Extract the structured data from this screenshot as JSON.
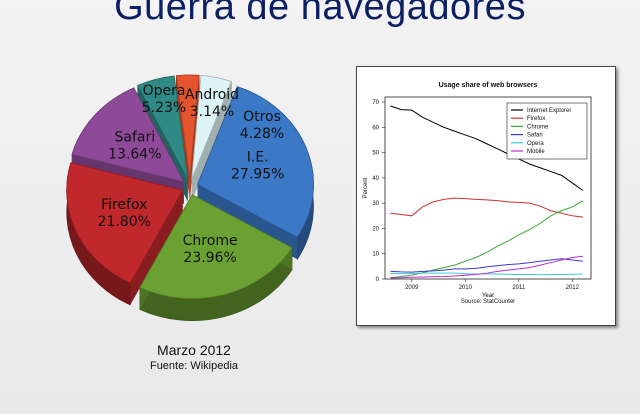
{
  "slide": {
    "title": "Guerra de navegadores",
    "caption_date": "Marzo 2012",
    "caption_source": "Fuente: Wikipedia"
  },
  "chart_data": [
    {
      "type": "pie",
      "slices": [
        {
          "name": "I.E.",
          "value": 27.95,
          "label": "27.95%",
          "color": "#3b78c6"
        },
        {
          "name": "Chrome",
          "value": 23.96,
          "label": "23.96%",
          "color": "#6aa132"
        },
        {
          "name": "Firefox",
          "value": 21.8,
          "label": "21.80%",
          "color": "#c0282c"
        },
        {
          "name": "Safari",
          "value": 13.64,
          "label": "13.64%",
          "color": "#8e4a99"
        },
        {
          "name": "Opera",
          "value": 5.23,
          "label": "5.23%",
          "color": "#2f8a86"
        },
        {
          "name": "Android",
          "value": 3.14,
          "label": "3.14%",
          "color": "#e4542e"
        },
        {
          "name": "Otros",
          "value": 4.28,
          "label": "4.28%",
          "color": "#def3f5"
        }
      ]
    },
    {
      "type": "line",
      "title": "Usage share of web browsers",
      "xlabel": "Year",
      "ylabel": "Percent",
      "source": "Source: StatCounter",
      "xlim": [
        2008.5,
        2012.35
      ],
      "ylim": [
        0,
        72
      ],
      "x_ticks": [
        2009,
        2010,
        2011,
        2012
      ],
      "y_ticks": [
        0,
        10,
        20,
        30,
        40,
        50,
        60,
        70
      ],
      "legend_position": "top-right",
      "x": [
        2008.6,
        2008.8,
        2009.0,
        2009.2,
        2009.4,
        2009.6,
        2009.8,
        2010.0,
        2010.2,
        2010.4,
        2010.6,
        2010.8,
        2011.0,
        2011.2,
        2011.4,
        2011.6,
        2011.8,
        2012.0,
        2012.2
      ],
      "series": [
        {
          "name": "Internet Explorer",
          "color": "#000000",
          "values": [
            68.5,
            67,
            66.8,
            64,
            62,
            60,
            58.5,
            57,
            55.5,
            53.5,
            51.5,
            49.5,
            47.5,
            45.5,
            44,
            42.5,
            41,
            38,
            35
          ]
        },
        {
          "name": "Firefox",
          "color": "#d03030",
          "values": [
            26,
            25.5,
            25,
            28.5,
            30.5,
            31.5,
            32,
            31.8,
            31.5,
            31.3,
            31,
            30.5,
            30.3,
            30,
            28.8,
            27,
            26,
            25,
            24.5
          ]
        },
        {
          "name": "Chrome",
          "color": "#3aa833",
          "values": [
            0.5,
            1,
            1.5,
            2.5,
            3.5,
            4.5,
            5.5,
            7,
            8.5,
            10.5,
            13,
            15,
            17.5,
            19.5,
            22,
            25,
            27,
            28.5,
            31
          ]
        },
        {
          "name": "Safari",
          "color": "#3a3ac8",
          "values": [
            3,
            2.8,
            2.7,
            3,
            3.2,
            3.5,
            4,
            4,
            4.2,
            4.8,
            5.3,
            5.7,
            6,
            6.5,
            7,
            7.5,
            8,
            7.5,
            7
          ]
        },
        {
          "name": "Opera",
          "color": "#40c8d8",
          "values": [
            2.2,
            2.1,
            2.2,
            2.3,
            2.3,
            2.3,
            2.3,
            2.1,
            2,
            2.1,
            2,
            1.9,
            1.8,
            1.8,
            1.7,
            1.8,
            1.8,
            1.9,
            2
          ]
        },
        {
          "name": "Mobile",
          "color": "#c02cc8",
          "values": [
            0.4,
            0.5,
            0.7,
            0.8,
            0.9,
            1,
            1.2,
            1.5,
            1.8,
            2.3,
            3,
            3.5,
            4,
            4.5,
            5.5,
            6.5,
            7.5,
            8.5,
            9
          ]
        }
      ]
    }
  ]
}
